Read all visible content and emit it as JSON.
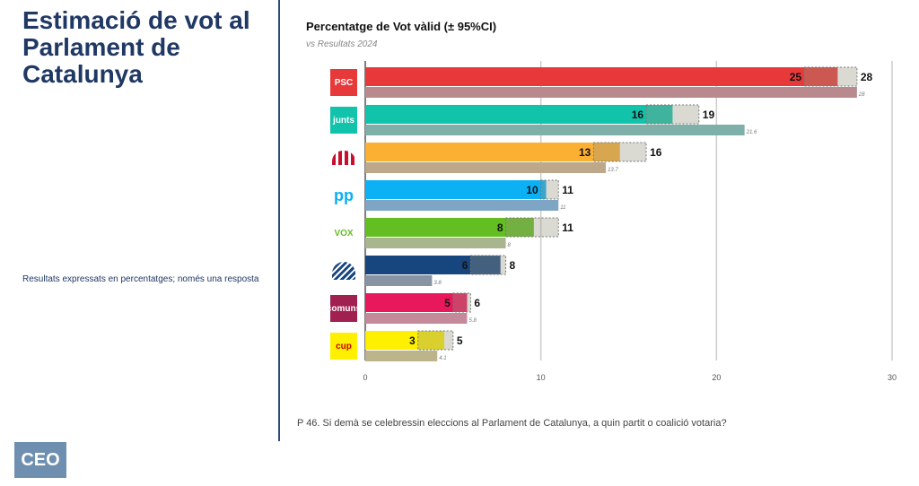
{
  "title": "Estimació de vot al Parlament de Catalunya",
  "note": "Resultats expressats en percentatges; només una resposta",
  "logo": "CEO",
  "question": "P 46.  Si demà se celebressin eleccions al Parlament de Catalunya, a quin partit o coalició votaria?",
  "chart_data": {
    "type": "bar",
    "orientation": "horizontal",
    "title": "Percentatge de Vot vàlid (± 95%CI)",
    "subtitle": "vs Resultats 2024",
    "xlim": [
      0,
      30
    ],
    "xticks": [
      0,
      10,
      20,
      30
    ],
    "grid": true,
    "categories": [
      "PSC",
      "Junts",
      "ERC",
      "PP",
      "Vox",
      "Aliança Catalana",
      "Comuns",
      "CUP"
    ],
    "logo_text": [
      "PSC",
      "junts",
      "",
      "pp",
      "VOX",
      "",
      "comuns",
      "cup"
    ],
    "colors": [
      "#e8393a",
      "#12c3ac",
      "#fbb034",
      "#0bb0f5",
      "#63be21",
      "#17467f",
      "#e8185c",
      "#fff000"
    ],
    "result_colors": [
      "#b88a8e",
      "#7eafa8",
      "#bda88a",
      "#7ea6c4",
      "#a8b58e",
      "#8893a3",
      "#c58a9a",
      "#bcb48a"
    ],
    "estimate": [
      26.9,
      17.5,
      14.5,
      10.3,
      9.6,
      7.7,
      5.8,
      4.5
    ],
    "ci_low": [
      25,
      16,
      13,
      10,
      8,
      6,
      5,
      3
    ],
    "ci_high": [
      28,
      19,
      16,
      11,
      11,
      8,
      6,
      5
    ],
    "results_2024": [
      28,
      21.6,
      13.7,
      11,
      8,
      3.8,
      5.8,
      4.1
    ]
  }
}
